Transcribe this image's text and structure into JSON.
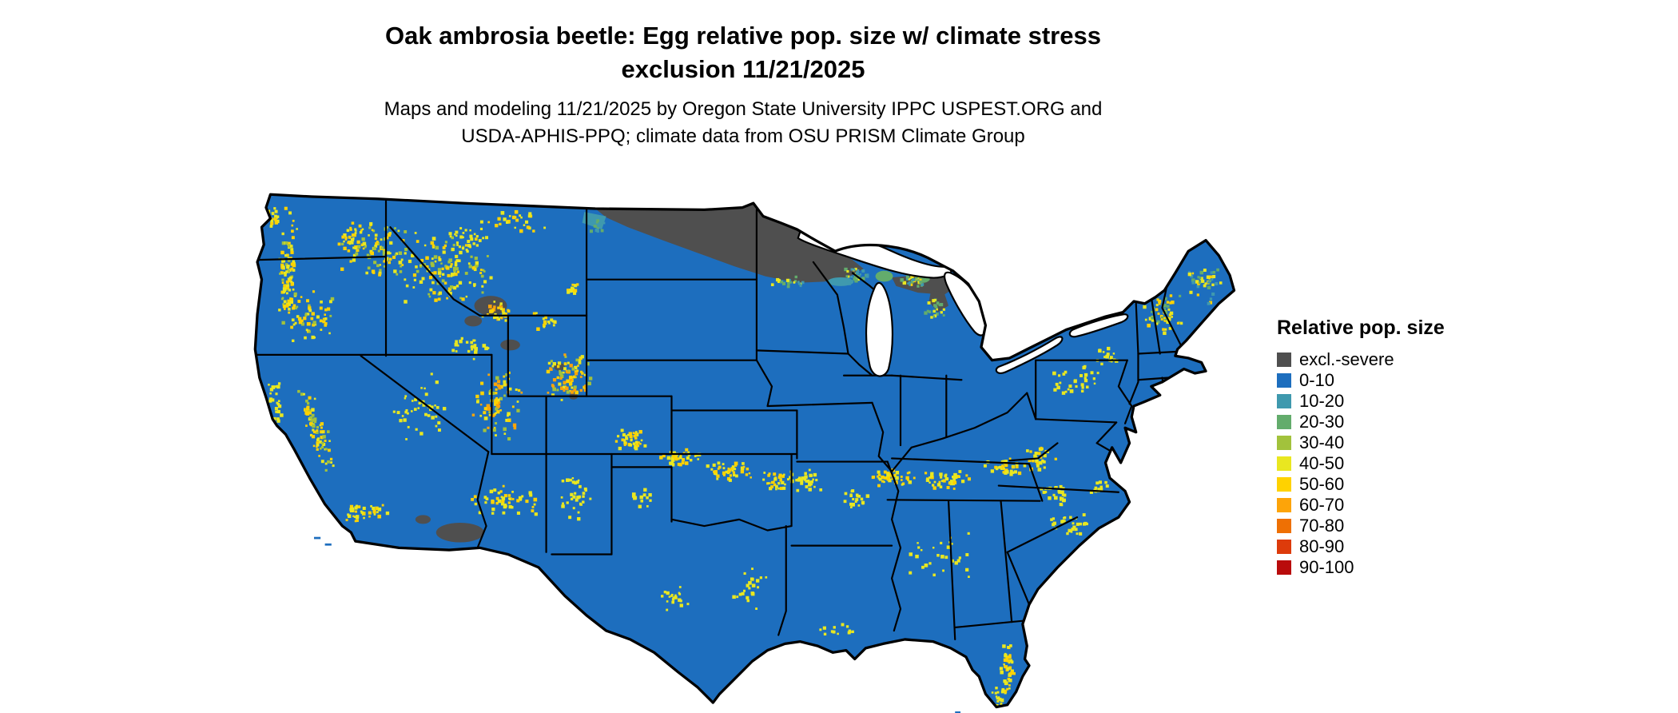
{
  "title": "Oak ambrosia beetle: Egg relative pop. size w/ climate stress\nexclusion 11/21/2025",
  "subtitle": "Maps and modeling 11/21/2025 by Oregon State University IPPC USPEST.ORG and\nUSDA-APHIS-PPQ; climate data from OSU PRISM Climate Group",
  "legend": {
    "title": "Relative pop. size",
    "items": [
      {
        "label": "excl.-severe",
        "color": "#4f4f4f"
      },
      {
        "label": "0-10",
        "color": "#1d6ebe"
      },
      {
        "label": "10-20",
        "color": "#3f99ae"
      },
      {
        "label": "20-30",
        "color": "#63ac6c"
      },
      {
        "label": "30-40",
        "color": "#a2c23c"
      },
      {
        "label": "40-50",
        "color": "#e9e720"
      },
      {
        "label": "50-60",
        "color": "#ffd200"
      },
      {
        "label": "60-70",
        "color": "#fda409"
      },
      {
        "label": "70-80",
        "color": "#ee7004"
      },
      {
        "label": "80-90",
        "color": "#dd3b0b"
      },
      {
        "label": "90-100",
        "color": "#b90c0c"
      }
    ]
  }
}
